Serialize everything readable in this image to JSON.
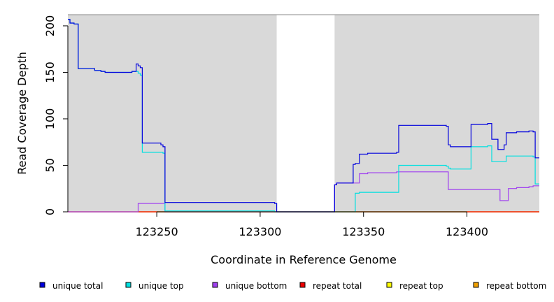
{
  "chart_data": {
    "type": "line",
    "xlabel": "Coordinate in Reference Genome",
    "ylabel": "Read Coverage Depth",
    "xlim": [
      123207,
      123435
    ],
    "ylim": [
      0,
      212
    ],
    "x_ticks": [
      123250,
      123300,
      123350,
      123400
    ],
    "x_tick_labels": [
      "123250",
      "123300",
      "123350",
      "123400"
    ],
    "y_ticks": [
      0,
      50,
      100,
      150,
      200
    ],
    "y_tick_labels": [
      "0",
      "50",
      "100",
      "150",
      "200"
    ],
    "background_color": "#d9d9d9",
    "grid": false,
    "legend_position": "bottom",
    "shaded_regions": [
      [
        123207,
        123308
      ],
      [
        123336,
        123435
      ]
    ],
    "series": [
      {
        "name": "unique total",
        "color": "#0000dd",
        "points": [
          [
            123207,
            207
          ],
          [
            123208,
            203
          ],
          [
            123210,
            202
          ],
          [
            123212,
            154
          ],
          [
            123220,
            152
          ],
          [
            123223,
            151
          ],
          [
            123225,
            150
          ],
          [
            123238,
            151
          ],
          [
            123240,
            159
          ],
          [
            123241,
            157
          ],
          [
            123242,
            155
          ],
          [
            123243,
            74
          ],
          [
            123252,
            72
          ],
          [
            123253,
            70
          ],
          [
            123254,
            10
          ],
          [
            123306,
            10
          ],
          [
            123307,
            9
          ],
          [
            123308,
            0
          ],
          [
            123336,
            29
          ],
          [
            123337,
            31
          ],
          [
            123345,
            51
          ],
          [
            123346,
            52
          ],
          [
            123348,
            62
          ],
          [
            123352,
            63
          ],
          [
            123366,
            64
          ],
          [
            123367,
            93
          ],
          [
            123390,
            92
          ],
          [
            123391,
            72
          ],
          [
            123392,
            70
          ],
          [
            123402,
            94
          ],
          [
            123410,
            95
          ],
          [
            123412,
            78
          ],
          [
            123415,
            67
          ],
          [
            123418,
            72
          ],
          [
            123419,
            85
          ],
          [
            123424,
            86
          ],
          [
            123430,
            87
          ],
          [
            123432,
            86
          ],
          [
            123433,
            58
          ],
          [
            123435,
            58
          ]
        ]
      },
      {
        "name": "unique top",
        "color": "#00e0e0",
        "points": [
          [
            123207,
            207
          ],
          [
            123208,
            203
          ],
          [
            123210,
            202
          ],
          [
            123212,
            154
          ],
          [
            123220,
            152
          ],
          [
            123223,
            151
          ],
          [
            123225,
            150
          ],
          [
            123238,
            151
          ],
          [
            123240,
            151
          ],
          [
            123241,
            149
          ],
          [
            123242,
            147
          ],
          [
            123243,
            64
          ],
          [
            123253,
            63
          ],
          [
            123254,
            1
          ],
          [
            123307,
            0
          ],
          [
            123345,
            0
          ],
          [
            123346,
            20
          ],
          [
            123348,
            21
          ],
          [
            123366,
            21
          ],
          [
            123367,
            50
          ],
          [
            123390,
            49
          ],
          [
            123391,
            47
          ],
          [
            123392,
            46
          ],
          [
            123402,
            70
          ],
          [
            123410,
            71
          ],
          [
            123412,
            54
          ],
          [
            123418,
            54
          ],
          [
            123419,
            60
          ],
          [
            123432,
            59
          ],
          [
            123433,
            30
          ],
          [
            123435,
            30
          ]
        ]
      },
      {
        "name": "unique bottom",
        "color": "#a040f0",
        "points": [
          [
            123207,
            0
          ],
          [
            123240,
            0
          ],
          [
            123241,
            9
          ],
          [
            123253,
            9
          ],
          [
            123254,
            0
          ],
          [
            123336,
            29
          ],
          [
            123337,
            31
          ],
          [
            123348,
            41
          ],
          [
            123352,
            42
          ],
          [
            123366,
            43
          ],
          [
            123390,
            43
          ],
          [
            123391,
            24
          ],
          [
            123415,
            24
          ],
          [
            123416,
            12
          ],
          [
            123419,
            12
          ],
          [
            123420,
            25
          ],
          [
            123424,
            26
          ],
          [
            123430,
            27
          ],
          [
            123432,
            28
          ],
          [
            123435,
            28
          ]
        ]
      },
      {
        "name": "repeat total",
        "color": "#ee0000",
        "points": [
          [
            123207,
            0
          ],
          [
            123435,
            0
          ]
        ]
      },
      {
        "name": "repeat top",
        "color": "#ffff00",
        "points": [
          [
            123207,
            0
          ],
          [
            123435,
            0
          ]
        ]
      },
      {
        "name": "repeat bottom",
        "color": "#f0a000",
        "points": [
          [
            123207,
            0
          ],
          [
            123435,
            0
          ]
        ]
      }
    ]
  }
}
